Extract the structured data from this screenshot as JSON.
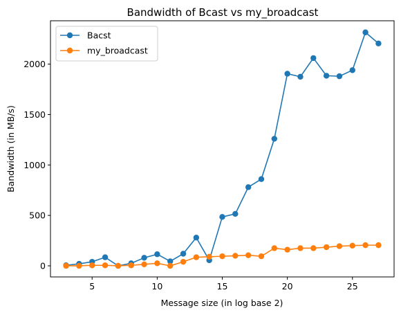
{
  "chart_data": {
    "type": "line",
    "title": "Bandwidth of Bcast vs my_broadcast",
    "xlabel": "Message size (in log base 2)",
    "ylabel": "Bandwidth (in MB/s)",
    "xlim": [
      1.8,
      28.2
    ],
    "ylim": [
      -110,
      2430
    ],
    "xticks": [
      5,
      10,
      15,
      20,
      25
    ],
    "yticks": [
      0,
      500,
      1000,
      1500,
      2000
    ],
    "grid": false,
    "legend_position": "top-left",
    "x": [
      3,
      4,
      5,
      6,
      7,
      8,
      9,
      10,
      11,
      12,
      13,
      14,
      15,
      16,
      17,
      18,
      19,
      20,
      21,
      22,
      23,
      24,
      25,
      26,
      27
    ],
    "series": [
      {
        "name": "Bacst",
        "color": "#1f77b4",
        "values": [
          5,
          20,
          40,
          85,
          0,
          25,
          80,
          115,
          45,
          120,
          280,
          55,
          485,
          515,
          780,
          860,
          1260,
          1905,
          1875,
          2060,
          1885,
          1880,
          1940,
          2315,
          2205
        ]
      },
      {
        "name": "my_broadcast",
        "color": "#ff7f0e",
        "values": [
          0,
          0,
          5,
          5,
          0,
          5,
          15,
          25,
          0,
          40,
          85,
          90,
          95,
          100,
          105,
          95,
          175,
          160,
          175,
          175,
          185,
          195,
          200,
          205,
          205
        ]
      }
    ]
  }
}
